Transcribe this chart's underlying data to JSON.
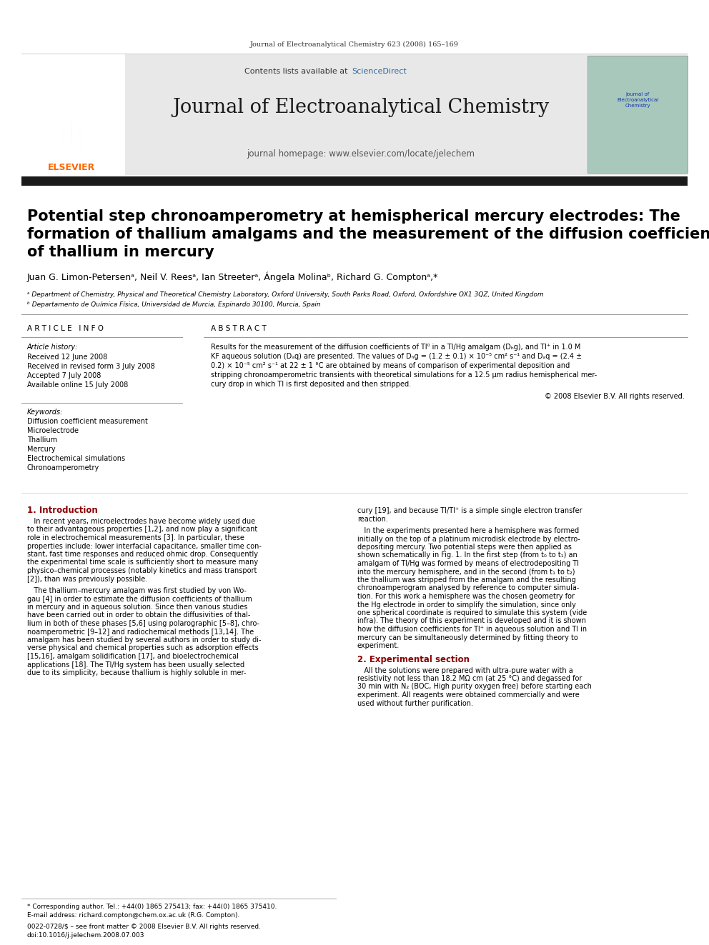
{
  "page_width": 9.92,
  "page_height": 13.23,
  "bg_color": "#ffffff",
  "header_journal_text": "Journal of Electroanalytical Chemistry 623 (2008) 165–169",
  "header_contents_text": "Contents lists available at ",
  "header_sciencedirect": "ScienceDirect",
  "header_journal_name": "Journal of Electroanalytical Chemistry",
  "header_homepage_text": "journal homepage: www.elsevier.com/locate/jelechem",
  "elsevier_color": "#FF6600",
  "sciencedirect_color": "#336699",
  "article_title_line1": "Potential step chronoamperometry at hemispherical mercury electrodes: The",
  "article_title_line2": "formation of thallium amalgams and the measurement of the diffusion coefficient",
  "article_title_line3": "of thallium in mercury",
  "authors": "Juan G. Limon-Petersenᵃ, Neil V. Reesᵃ, Ian Streeterᵃ, Ángela Molinaᵇ, Richard G. Comptonᵃ,*",
  "affil_a": "ᵃ Department of Chemistry, Physical and Theoretical Chemistry Laboratory, Oxford University, South Parks Road, Oxford, Oxfordshire OX1 3QZ, United Kingdom",
  "affil_b": "ᵇ Departamento de Química Física, Universidad de Murcia, Espinardo 30100, Murcia, Spain",
  "section_article_info": "A R T I C L E   I N F O",
  "section_abstract": "A B S T R A C T",
  "article_history_label": "Article history:",
  "received1": "Received 12 June 2008",
  "received2": "Received in revised form 3 July 2008",
  "accepted": "Accepted 7 July 2008",
  "available": "Available online 15 July 2008",
  "keywords_label": "Keywords:",
  "keyword1": "Diffusion coefficient measurement",
  "keyword2": "Microelectrode",
  "keyword3": "Thallium",
  "keyword4": "Mercury",
  "keyword5": "Electrochemical simulations",
  "keyword6": "Chronoamperometry",
  "copyright_text": "© 2008 Elsevier B.V. All rights reserved.",
  "intro_heading": "1. Introduction",
  "exp_heading": "2. Experimental section",
  "footnote_star": "* Corresponding author. Tel.: +44(0) 1865 275413; fax: +44(0) 1865 375410.",
  "footnote_email": "E-mail address: richard.compton@chem.ox.ac.uk (R.G. Compton).",
  "footnote_issn": "0022-0728/$ – see front matter © 2008 Elsevier B.V. All rights reserved.",
  "footnote_doi": "doi:10.1016/j.jelechem.2008.07.003",
  "header_bg": "#e8e8e8",
  "thick_bar_color": "#1a1a1a",
  "thin_line_color": "#999999",
  "abstract_lines": [
    "Results for the measurement of the diffusion coefficients of Tl⁰ in a Tl/Hg amalgam (Dₕg), and Tl⁺ in 1.0 M",
    "KF aqueous solution (Dₐq) are presented. The values of Dₕg = (1.2 ± 0.1) × 10⁻⁵ cm² s⁻¹ and Dₐq = (2.4 ±",
    "0.2) × 10⁻⁵ cm² s⁻¹ at 22 ± 1 °C are obtained by means of comparison of experimental deposition and",
    "stripping chronoamperometric transients with theoretical simulations for a 12.5 μm radius hemispherical mer-",
    "cury drop in which Tl is first deposited and then stripped."
  ],
  "left_para1": [
    "   In recent years, microelectrodes have become widely used due",
    "to their advantageous properties [1,2], and now play a significant",
    "role in electrochemical measurements [3]. In particular, these",
    "properties include: lower interfacial capacitance, smaller time con-",
    "stant, fast time responses and reduced ohmic drop. Consequently",
    "the experimental time scale is sufficiently short to measure many",
    "physico–chemical processes (notably kinetics and mass transport",
    "[2]), than was previously possible."
  ],
  "left_para2": [
    "   The thallium–mercury amalgam was first studied by von Wo-",
    "gau [4] in order to estimate the diffusion coefficients of thallium",
    "in mercury and in aqueous solution. Since then various studies",
    "have been carried out in order to obtain the diffusivities of thal-",
    "lium in both of these phases [5,6] using polarographic [5–8], chro-",
    "noamperometric [9–12] and radiochemical methods [13,14]. The",
    "amalgam has been studied by several authors in order to study di-",
    "verse physical and chemical properties such as adsorption effects",
    "[15,16], amalgam solidification [17], and bioelectrochemical",
    "applications [18]. The Tl/Hg system has been usually selected",
    "due to its simplicity, because thallium is highly soluble in mer-"
  ],
  "right_para1": [
    "cury [19], and because Tl/Tl⁺ is a simple single electron transfer",
    "reaction."
  ],
  "right_para2": [
    "   In the experiments presented here a hemisphere was formed",
    "initially on the top of a platinum microdisk electrode by electro-",
    "depositing mercury. Two potential steps were then applied as",
    "shown schematically in Fig. 1. In the first step (from t₀ to t₁) an",
    "amalgam of Tl/Hg was formed by means of electrodepositing Tl",
    "into the mercury hemisphere, and in the second (from t₁ to t₂)",
    "the thallium was stripped from the amalgam and the resulting",
    "chronoamperogram analysed by reference to computer simula-",
    "tion. For this work a hemisphere was the chosen geometry for",
    "the Hg electrode in order to simplify the simulation, since only",
    "one spherical coordinate is required to simulate this system (vide",
    "infra). The theory of this experiment is developed and it is shown",
    "how the diffusion coefficients for Tl⁺ in aqueous solution and Tl in",
    "mercury can be simultaneously determined by fitting theory to",
    "experiment."
  ],
  "exp_lines": [
    "   All the solutions were prepared with ultra-pure water with a",
    "resistivity not less than 18.2 MΩ cm (at 25 °C) and degassed for",
    "30 min with N₂ (BOC, High purity oxygen free) before starting each",
    "experiment. All reagents were obtained commercially and were",
    "used without further purification."
  ]
}
